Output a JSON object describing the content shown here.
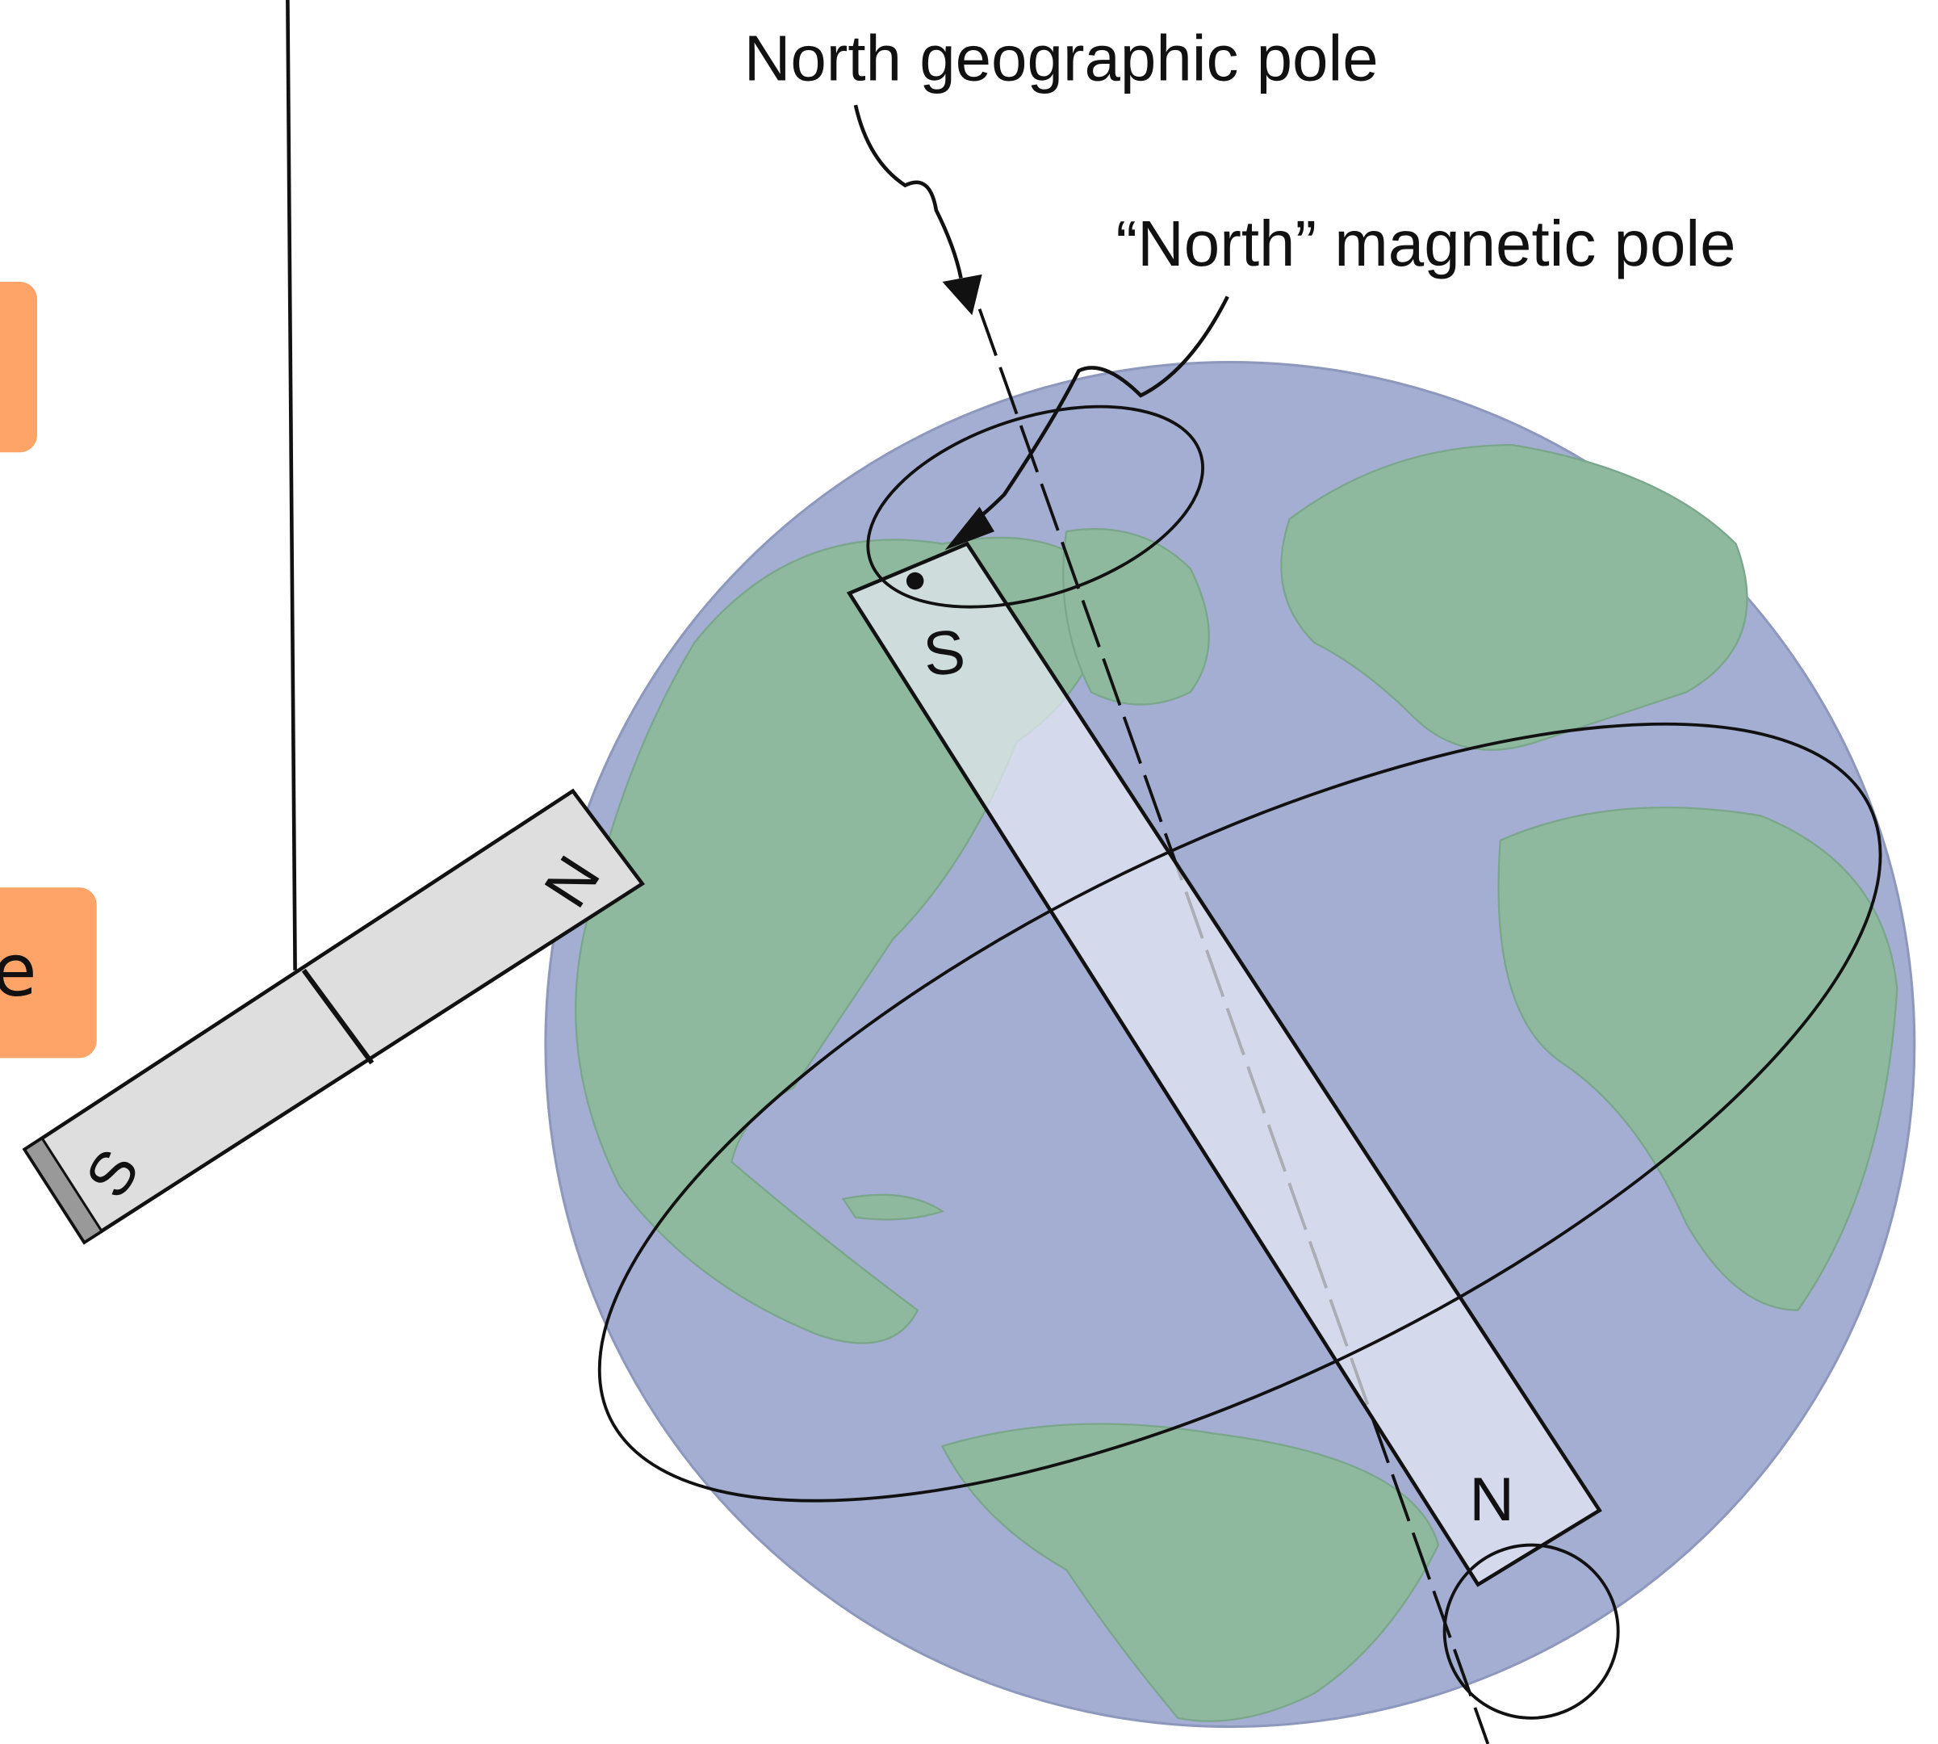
{
  "labels": {
    "geographic_pole": "North geographic pole",
    "magnetic_pole": "“North” magnetic pole",
    "compass_south": "S",
    "compass_north": "N",
    "earth_south": "S",
    "earth_north": "N",
    "cutoff_box_text": "e"
  }
}
